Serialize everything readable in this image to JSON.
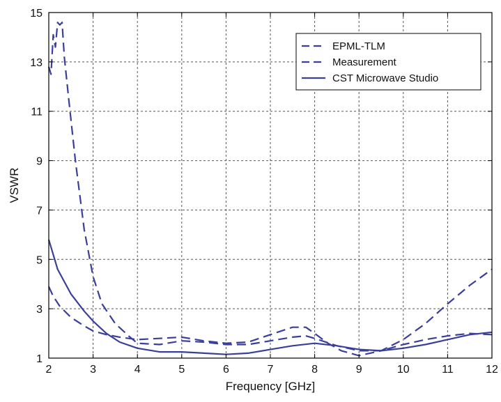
{
  "chart_data": {
    "type": "line",
    "title": "",
    "xlabel": "Frequency [GHz]",
    "ylabel": "VSWR",
    "xlim": [
      2,
      12
    ],
    "ylim": [
      1,
      15
    ],
    "x_ticks": [
      2,
      3,
      4,
      5,
      6,
      7,
      8,
      9,
      10,
      11,
      12
    ],
    "y_ticks": [
      1,
      3,
      5,
      7,
      9,
      11,
      13,
      15
    ],
    "grid": true,
    "legend_position": "top-right",
    "series": [
      {
        "name": "EPML-TLM",
        "style": "dashed",
        "color": "#3a3f9a",
        "x": [
          2.0,
          2.1,
          2.25,
          2.5,
          2.8,
          3.0,
          3.3,
          3.6,
          4.0,
          4.5,
          5.0,
          5.5,
          6.0,
          6.5,
          7.0,
          7.5,
          7.8,
          8.0,
          8.3,
          8.6,
          9.0,
          9.5,
          10.0,
          10.5,
          11.0,
          11.5,
          12.0
        ],
        "y": [
          3.9,
          3.5,
          3.1,
          2.65,
          2.3,
          2.1,
          1.95,
          1.85,
          1.75,
          1.8,
          1.85,
          1.7,
          1.6,
          1.65,
          1.95,
          2.25,
          2.25,
          2.0,
          1.6,
          1.3,
          1.1,
          1.3,
          1.75,
          2.4,
          3.2,
          3.95,
          4.6
        ]
      },
      {
        "name": "Measurement",
        "style": "dashed",
        "color": "#3a3f9a",
        "x": [
          2.0,
          2.05,
          2.1,
          2.15,
          2.2,
          2.25,
          2.3,
          2.35,
          2.45,
          2.6,
          2.8,
          3.0,
          3.2,
          3.5,
          3.8,
          4.0,
          4.5,
          5.0,
          5.5,
          6.0,
          6.5,
          7.0,
          7.5,
          7.8,
          8.0,
          8.5,
          9.0,
          9.5,
          10.0,
          10.5,
          11.0,
          11.5,
          12.0
        ],
        "y": [
          12.8,
          12.5,
          14.1,
          13.6,
          14.6,
          14.5,
          14.6,
          13.2,
          11.5,
          9.0,
          6.2,
          4.3,
          3.2,
          2.4,
          1.9,
          1.6,
          1.55,
          1.7,
          1.65,
          1.55,
          1.55,
          1.7,
          1.85,
          1.9,
          1.8,
          1.5,
          1.3,
          1.3,
          1.55,
          1.75,
          1.9,
          2.0,
          1.95
        ]
      },
      {
        "name": "CST Microwave Studio",
        "style": "solid",
        "color": "#3a3f9a",
        "x": [
          2.0,
          2.2,
          2.5,
          2.8,
          3.0,
          3.3,
          3.6,
          4.0,
          4.5,
          5.0,
          5.5,
          6.0,
          6.5,
          7.0,
          7.5,
          8.0,
          8.5,
          9.0,
          9.5,
          10.0,
          10.5,
          11.0,
          11.5,
          12.0
        ],
        "y": [
          5.8,
          4.6,
          3.6,
          2.9,
          2.5,
          2.0,
          1.65,
          1.4,
          1.25,
          1.25,
          1.2,
          1.15,
          1.2,
          1.35,
          1.5,
          1.6,
          1.5,
          1.35,
          1.3,
          1.4,
          1.55,
          1.75,
          1.95,
          2.05
        ]
      }
    ]
  }
}
